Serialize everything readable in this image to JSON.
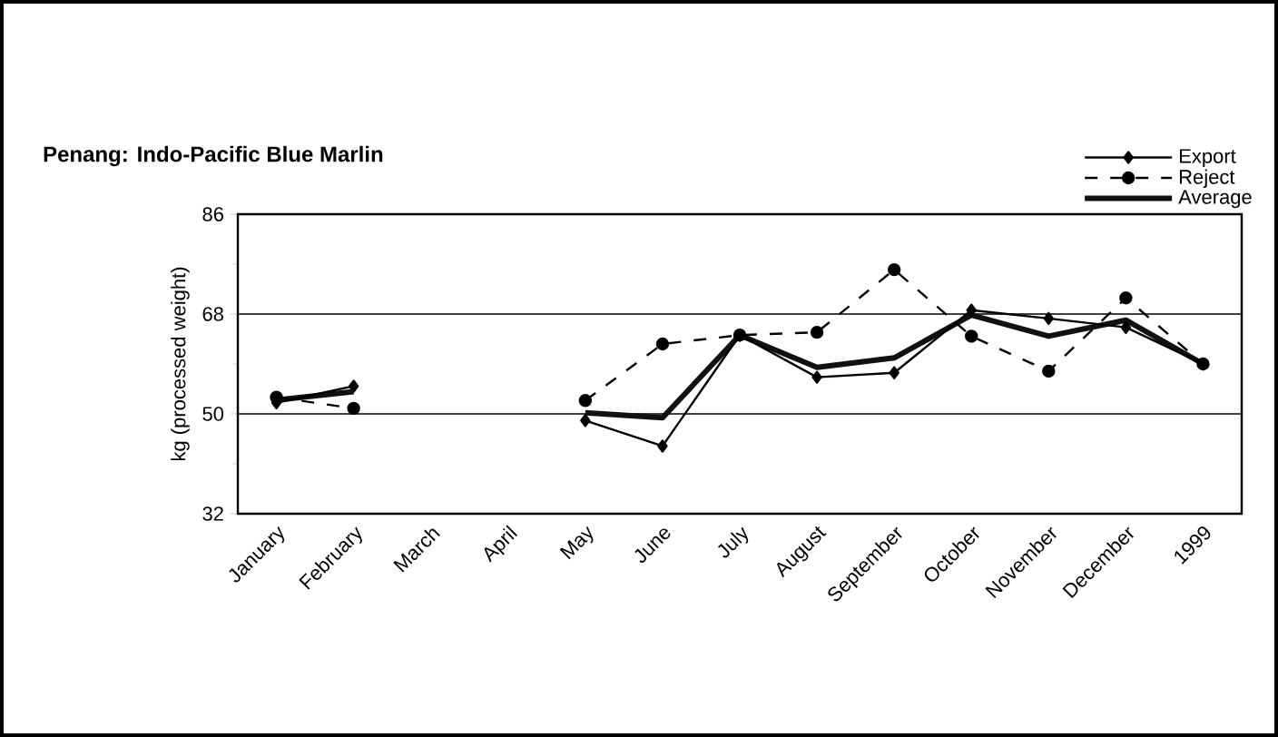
{
  "chart_data": {
    "type": "line",
    "title": "Penang: Indo-Pacific Blue Marlin",
    "ylabel": "kg (processed weight)",
    "categories": [
      "January",
      "February",
      "March",
      "April",
      "May",
      "June",
      "July",
      "August",
      "September",
      "October",
      "November",
      "December",
      "1999"
    ],
    "series": [
      {
        "name": "Export",
        "color": "#000000",
        "marker": "diamond",
        "line_style": "solid",
        "values": [
          52,
          55,
          null,
          null,
          48.8,
          44.2,
          64.2,
          56.6,
          57.4,
          68.7,
          67.2,
          65.6,
          59.0
        ]
      },
      {
        "name": "Reject",
        "color": "#000000",
        "marker": "circle",
        "line_style": "dashed",
        "values": [
          53,
          51,
          null,
          null,
          52.4,
          62.6,
          64.2,
          64.7,
          76.0,
          64.0,
          57.7,
          70.9,
          59.0
        ]
      },
      {
        "name": "Average",
        "color": "#111111",
        "marker": "none",
        "line_style": "solid",
        "values": [
          52.5,
          54,
          null,
          null,
          50.2,
          49.3,
          64.2,
          58.4,
          60.1,
          67.8,
          64.0,
          66.9,
          59.0
        ]
      }
    ],
    "ylim": [
      32,
      86
    ],
    "yticks": [
      32,
      50,
      68,
      86
    ],
    "grid": "y",
    "legend": "top right"
  }
}
